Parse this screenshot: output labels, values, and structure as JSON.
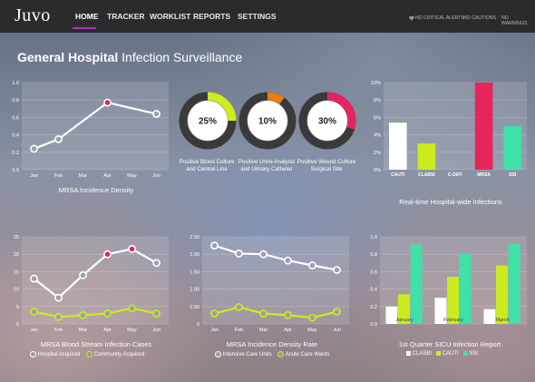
{
  "app": {
    "logo": "Juvo"
  },
  "nav": {
    "items": [
      "HOME",
      "TRACKER",
      "WORKLIST",
      "REPORTS",
      "SETTINGS"
    ],
    "active": "HOME"
  },
  "status": {
    "alerts": "NO CRITICAL ALERTS",
    "cautions": "NO CAUTIONS",
    "warnings": "NO WARNINGS"
  },
  "page": {
    "title_bold": "General Hospital",
    "title_rest": "Infection Surveillance"
  },
  "colors": {
    "highlight": "#e8245c",
    "yellow": "#ccec1f",
    "green": "#3fe1a8",
    "orange": "#f07a12",
    "white": "#ffffff",
    "nav_accent": "#b12fbf"
  },
  "chart_data": [
    {
      "id": "mrsa_density",
      "type": "line",
      "title": "MRSA Incidence Density",
      "categories": [
        "Jan",
        "Feb",
        "Mar",
        "Apr",
        "May",
        "Jun"
      ],
      "y_ticks": [
        "0.0",
        "0.2",
        "0.4",
        "0.6",
        "0.8",
        "1.0"
      ],
      "ylim": [
        0,
        1.0
      ],
      "series": [
        {
          "values": [
            0.24,
            0.35,
            null,
            0.77,
            null,
            0.64
          ]
        }
      ],
      "highlight_index": 3
    },
    {
      "id": "donuts",
      "type": "pie",
      "items": [
        {
          "percent": 25,
          "label": "25%",
          "caption_line1": "Positive Blood Culture",
          "caption_line2": "and Central Line",
          "color": "#ccec1f"
        },
        {
          "percent": 10,
          "label": "10%",
          "caption_line1": "Positive Urine Analysis",
          "caption_line2": "and Urinary Catheter",
          "color": "#f07a12"
        },
        {
          "percent": 30,
          "label": "30%",
          "caption_line1": "Positive Wound Culture",
          "caption_line2": "Surgical Site",
          "color": "#e8245c"
        }
      ]
    },
    {
      "id": "realtime",
      "type": "bar",
      "title": "Real-time Hospital-wide Infections",
      "categories": [
        "CAUTI",
        "CLABSI",
        "C-DIFF",
        "MRSA",
        "SSI"
      ],
      "values": [
        5.4,
        3.0,
        0,
        10.0,
        5.0
      ],
      "colors": [
        "#ffffff",
        "#ccec1f",
        "#ffffff",
        "#e8245c",
        "#3fe1a8"
      ],
      "y_ticks": [
        "0%",
        "2%",
        "4%",
        "6%",
        "8%",
        "10%"
      ],
      "ylim": [
        0,
        10
      ]
    },
    {
      "id": "bsi_cases",
      "type": "line",
      "title": "MRSA Blood Stream Infection Cases",
      "categories": [
        "Jan",
        "Feb",
        "Mar",
        "Apr",
        "May",
        "Jun"
      ],
      "y_ticks": [
        "0",
        "5",
        "10",
        "15",
        "20",
        "25"
      ],
      "ylim": [
        0,
        25
      ],
      "series": [
        {
          "name": "Hospital Acquired",
          "values": [
            13,
            7.5,
            14,
            20,
            21.5,
            17.5
          ],
          "color": "#ffffff"
        },
        {
          "name": "Community Acquired",
          "values": [
            3.5,
            2,
            2.5,
            3,
            4.5,
            3
          ],
          "color": "#ccec1f"
        }
      ],
      "highlight_indices": [
        3,
        4
      ]
    },
    {
      "id": "density_rate",
      "type": "line",
      "title": "MRSA Incidence Density Rate",
      "categories": [
        "Jan",
        "Feb",
        "Mar",
        "Apr",
        "May",
        "Jun"
      ],
      "y_ticks": [
        "0",
        "0.50",
        "1.00",
        "1.50",
        "2.00",
        "2.50"
      ],
      "ylim": [
        0,
        2.5
      ],
      "series": [
        {
          "name": "Intensive Care Units",
          "values": [
            2.25,
            2.02,
            2.0,
            1.82,
            1.68,
            1.55
          ],
          "color": "#ffffff"
        },
        {
          "name": "Acute Care Wards",
          "values": [
            0.3,
            0.48,
            0.3,
            0.25,
            0.18,
            0.35
          ],
          "color": "#ccec1f"
        }
      ]
    },
    {
      "id": "sicu_report",
      "type": "bar",
      "title": "1st Quarter SICU Infection Report",
      "categories": [
        "January",
        "February",
        "March"
      ],
      "y_ticks": [
        "0.0",
        "0.2",
        "0.4",
        "0.6",
        "0.8",
        "1.0"
      ],
      "ylim": [
        0,
        1.0
      ],
      "series": [
        {
          "name": "CLASBI",
          "values": [
            0.2,
            0.3,
            0.17
          ],
          "color": "#ffffff"
        },
        {
          "name": "CAUTI",
          "values": [
            0.34,
            0.54,
            0.67
          ],
          "color": "#ccec1f"
        },
        {
          "name": "SSI",
          "values": [
            0.91,
            0.81,
            0.92
          ],
          "color": "#3fe1a8"
        }
      ]
    }
  ]
}
